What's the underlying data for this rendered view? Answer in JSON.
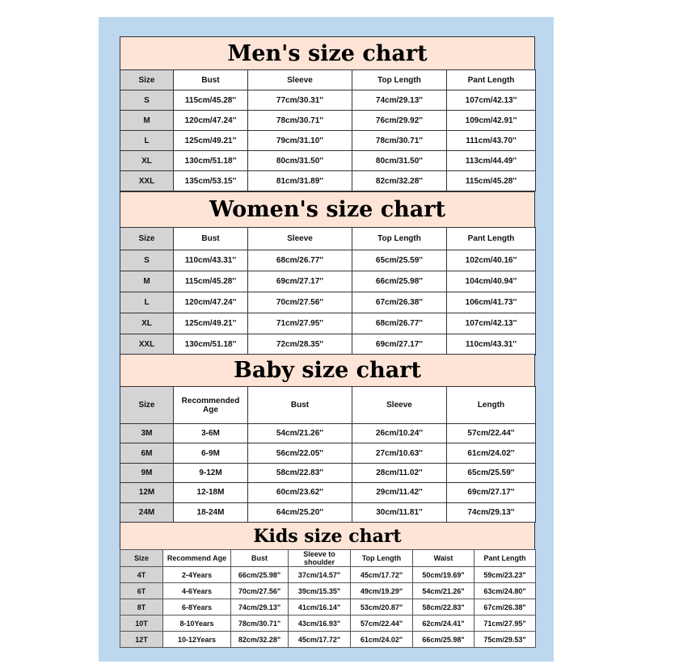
{
  "charts": [
    {
      "title": "Men's size chart",
      "headers": [
        "Size",
        "Bust",
        "Sleeve",
        "Top Length",
        "Pant Length"
      ],
      "rows": [
        [
          "S",
          "115cm/45.28''",
          "77cm/30.31''",
          "74cm/29.13''",
          "107cm/42.13''"
        ],
        [
          "M",
          "120cm/47.24''",
          "78cm/30.71''",
          "76cm/29.92''",
          "109cm/42.91''"
        ],
        [
          "L",
          "125cm/49.21''",
          "79cm/31.10''",
          "78cm/30.71''",
          "111cm/43.70''"
        ],
        [
          "XL",
          "130cm/51.18''",
          "80cm/31.50''",
          "80cm/31.50''",
          "113cm/44.49''"
        ],
        [
          "XXL",
          "135cm/53.15''",
          "81cm/31.89''",
          "82cm/32.28''",
          "115cm/45.28''"
        ]
      ]
    },
    {
      "title": "Women's size chart",
      "headers": [
        "Size",
        "Bust",
        "Sleeve",
        "Top Length",
        "Pant Length"
      ],
      "rows": [
        [
          "S",
          "110cm/43.31''",
          "68cm/26.77''",
          "65cm/25.59''",
          "102cm/40.16''"
        ],
        [
          "M",
          "115cm/45.28''",
          "69cm/27.17''",
          "66cm/25.98''",
          "104cm/40.94''"
        ],
        [
          "L",
          "120cm/47.24''",
          "70cm/27.56''",
          "67cm/26.38''",
          "106cm/41.73''"
        ],
        [
          "XL",
          "125cm/49.21''",
          "71cm/27.95''",
          "68cm/26.77''",
          "107cm/42.13''"
        ],
        [
          "XXL",
          "130cm/51.18''",
          "72cm/28.35''",
          "69cm/27.17''",
          "110cm/43.31''"
        ]
      ]
    },
    {
      "title": "Baby size chart",
      "headers": [
        "Size",
        "Recommended Age",
        "Bust",
        "Sleeve",
        "Length"
      ],
      "rows": [
        [
          "3M",
          "3-6M",
          "54cm/21.26''",
          "26cm/10.24''",
          "57cm/22.44''"
        ],
        [
          "6M",
          "6-9M",
          "56cm/22.05''",
          "27cm/10.63''",
          "61cm/24.02''"
        ],
        [
          "9M",
          "9-12M",
          "58cm/22.83''",
          "28cm/11.02''",
          "65cm/25.59''"
        ],
        [
          "12M",
          "12-18M",
          "60cm/23.62''",
          "29cm/11.42''",
          "69cm/27.17''"
        ],
        [
          "24M",
          "18-24M",
          "64cm/25.20''",
          "30cm/11.81''",
          "74cm/29.13''"
        ]
      ]
    },
    {
      "title": "Kids size chart",
      "headers": [
        "Size",
        "Recommend Age",
        "Bust",
        "Sleeve to shoulder",
        "Top Length",
        "Waist",
        "Pant Length"
      ],
      "rows": [
        [
          "4T",
          "2-4Years",
          "66cm/25.98\"",
          "37cm/14.57\"",
          "45cm/17.72\"",
          "50cm/19.69\"",
          "59cm/23.23\""
        ],
        [
          "6T",
          "4-6Years",
          "70cm/27.56\"",
          "39cm/15.35\"",
          "49cm/19.29\"",
          "54cm/21.26\"",
          "63cm/24.80\""
        ],
        [
          "8T",
          "6-8Years",
          "74cm/29.13\"",
          "41cm/16.14\"",
          "53cm/20.87\"",
          "58cm/22.83\"",
          "67cm/26.38\""
        ],
        [
          "10T",
          "8-10Years",
          "78cm/30.71\"",
          "43cm/16.93\"",
          "57cm/22.44\"",
          "62cm/24.41\"",
          "71cm/27.95\""
        ],
        [
          "12T",
          "10-12Years",
          "82cm/32.28\"",
          "45cm/17.72\"",
          "61cm/24.02\"",
          "66cm/25.98\"",
          "75cm/29.53\""
        ]
      ]
    }
  ]
}
